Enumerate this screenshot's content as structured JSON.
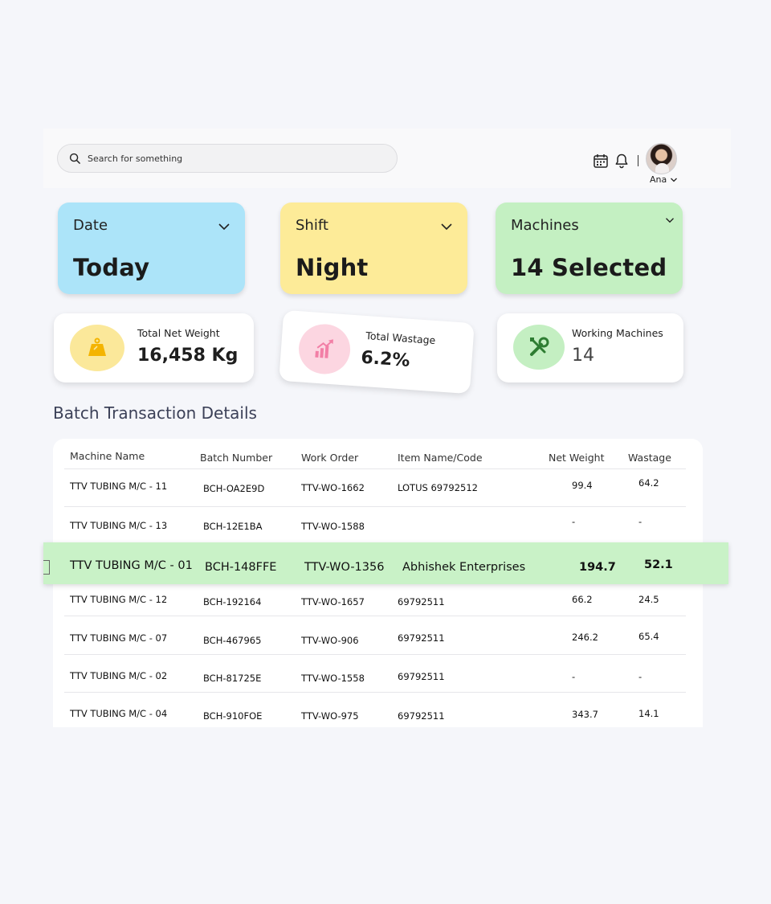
{
  "header": {
    "search_placeholder": "Search for something",
    "user_name": "Ana"
  },
  "filters": [
    {
      "label": "Date",
      "value": "Today",
      "bg": "#ace4f9"
    },
    {
      "label": "Shift",
      "value": "Night",
      "bg": "#fdeb98"
    },
    {
      "label": "Machines",
      "value": "14 Selected",
      "bg": "#c4f0c2"
    }
  ],
  "stats": [
    {
      "title": "Total Net Weight",
      "value": "16,458 Kg",
      "icon": "weight-icon",
      "color": "#fbe89a"
    },
    {
      "title": "Total Wastage",
      "value": "6.2%",
      "icon": "chart-up-icon",
      "color": "#fcd6e1"
    },
    {
      "title": "Working Machines",
      "value": "14",
      "icon": "tools-icon",
      "color": "#c4efc2"
    }
  ],
  "section_title": "Batch Transaction Details",
  "table": {
    "columns": [
      "Machine Name",
      "Batch Number",
      "Work Order",
      "Item Name/Code",
      "Net Weight",
      "Wastage"
    ],
    "rows": [
      {
        "machine": "TTV TUBING M/C - 11",
        "batch": "BCH-OA2E9D",
        "order": "TTV-WO-1662",
        "item": "LOTUS 69792512",
        "weight": "99.4",
        "wastage": "64.2"
      },
      {
        "machine": "TTV TUBING M/C - 13",
        "batch": "BCH-12E1BA",
        "order": "TTV-WO-1588",
        "item": "",
        "weight": "-",
        "wastage": "-"
      },
      {
        "machine": "TTV TUBING M/C - 12",
        "batch": "BCH-192164",
        "order": "TTV-WO-1657",
        "item": "69792511",
        "weight": "66.2",
        "wastage": "24.5"
      },
      {
        "machine": "TTV TUBING M/C - 07",
        "batch": "BCH-467965",
        "order": "TTV-WO-906",
        "item": "69792511",
        "weight": "246.2",
        "wastage": "65.4"
      },
      {
        "machine": "TTV TUBING M/C - 02",
        "batch": "BCH-81725E",
        "order": "TTV-WO-1558",
        "item": "69792511",
        "weight": "-",
        "wastage": "-"
      },
      {
        "machine": "TTV TUBING M/C - 04",
        "batch": "BCH-910FOE",
        "order": "TTV-WO-975",
        "item": "69792511",
        "weight": "343.7",
        "wastage": "14.1"
      }
    ],
    "highlighted_row": {
      "machine": "TTV TUBING M/C - 01",
      "batch": "BCH-148FFE",
      "order": "TTV-WO-1356",
      "item": "Abhishek Enterprises",
      "weight": "194.7",
      "wastage": "52.1"
    }
  }
}
